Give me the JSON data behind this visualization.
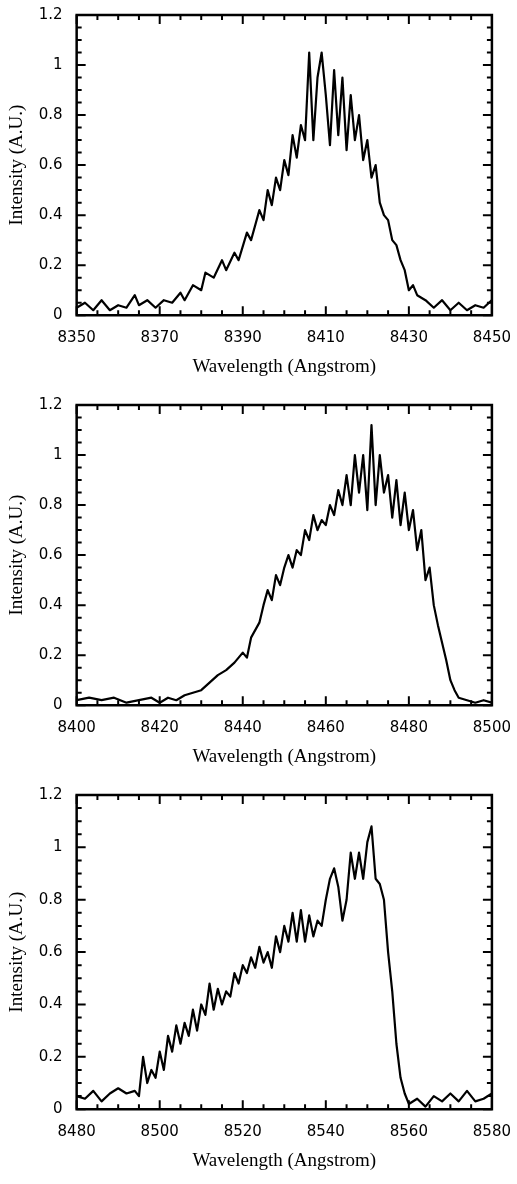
{
  "chart_data": [
    {
      "type": "line",
      "xlabel": "Wavelength (Angstrom)",
      "ylabel": "Intensity (A.U.)",
      "color": "#000000",
      "x": [
        8350,
        8352,
        8354,
        8356,
        8358,
        8360,
        8362,
        8364,
        8365,
        8367,
        8369,
        8371,
        8373,
        8375,
        8376,
        8378,
        8380,
        8381,
        8383,
        8385,
        8386,
        8388,
        8389,
        8391,
        8392,
        8394,
        8395,
        8396,
        8397,
        8398,
        8399,
        8400,
        8401,
        8402,
        8403,
        8404,
        8405,
        8406,
        8407,
        8408,
        8409,
        8410,
        8411,
        8412,
        8413,
        8414,
        8415,
        8416,
        8417,
        8418,
        8419,
        8420,
        8421,
        8422,
        8423,
        8424,
        8425,
        8426,
        8427,
        8428,
        8429,
        8430,
        8431,
        8432,
        8434,
        8436,
        8438,
        8440,
        8442,
        8444,
        8446,
        8448,
        8450
      ],
      "values": [
        0.03,
        0.05,
        0.02,
        0.06,
        0.02,
        0.04,
        0.03,
        0.08,
        0.04,
        0.06,
        0.03,
        0.06,
        0.05,
        0.09,
        0.06,
        0.12,
        0.1,
        0.17,
        0.15,
        0.22,
        0.18,
        0.25,
        0.22,
        0.33,
        0.3,
        0.42,
        0.38,
        0.5,
        0.44,
        0.55,
        0.5,
        0.62,
        0.56,
        0.72,
        0.63,
        0.76,
        0.7,
        1.05,
        0.7,
        0.95,
        1.05,
        0.88,
        0.68,
        0.98,
        0.72,
        0.95,
        0.66,
        0.88,
        0.7,
        0.8,
        0.62,
        0.7,
        0.55,
        0.6,
        0.45,
        0.4,
        0.38,
        0.3,
        0.28,
        0.22,
        0.18,
        0.1,
        0.12,
        0.08,
        0.06,
        0.03,
        0.06,
        0.02,
        0.05,
        0.02,
        0.04,
        0.03,
        0.06
      ],
      "xlim": [
        8350,
        8450
      ],
      "xticks": [
        8350,
        {
          "value": 8355,
          "label": null
        },
        {
          "value": 8360,
          "label": null
        },
        {
          "value": 8365,
          "label": null
        },
        8370,
        {
          "value": 8375,
          "label": null
        },
        {
          "value": 8380,
          "label": null
        },
        {
          "value": 8385,
          "label": null
        },
        8390,
        {
          "value": 8395,
          "label": null
        },
        {
          "value": 8400,
          "label": null
        },
        {
          "value": 8405,
          "label": null
        },
        8410,
        {
          "value": 8415,
          "label": null
        },
        {
          "value": 8420,
          "label": null
        },
        {
          "value": 8425,
          "label": null
        },
        8430,
        {
          "value": 8435,
          "label": null
        },
        {
          "value": 8440,
          "label": null
        },
        {
          "value": 8445,
          "label": null
        },
        8450
      ],
      "ylim": [
        0,
        1.2
      ],
      "yticks": [
        0,
        {
          "value": 0.05,
          "label": null
        },
        {
          "value": 0.1,
          "label": null
        },
        {
          "value": 0.15,
          "label": null
        },
        0.2,
        {
          "value": 0.25,
          "label": null
        },
        {
          "value": 0.3,
          "label": null
        },
        {
          "value": 0.35,
          "label": null
        },
        0.4,
        {
          "value": 0.45,
          "label": null
        },
        {
          "value": 0.5,
          "label": null
        },
        {
          "value": 0.55,
          "label": null
        },
        0.6,
        {
          "value": 0.65,
          "label": null
        },
        {
          "value": 0.7,
          "label": null
        },
        {
          "value": 0.75,
          "label": null
        },
        0.8,
        {
          "value": 0.85,
          "label": null
        },
        {
          "value": 0.9,
          "label": null
        },
        {
          "value": 0.95,
          "label": null
        },
        1,
        {
          "value": 1.05,
          "label": null
        },
        {
          "value": 1.1,
          "label": null
        },
        {
          "value": 1.15,
          "label": null
        },
        1.2
      ]
    },
    {
      "type": "line",
      "xlabel": "Wavelength (Angstrom)",
      "ylabel": "Intensity (A.U.)",
      "color": "#000000",
      "x": [
        8400,
        8403,
        8406,
        8409,
        8412,
        8415,
        8418,
        8420,
        8422,
        8424,
        8426,
        8428,
        8430,
        8432,
        8434,
        8436,
        8438,
        8440,
        8441,
        8442,
        8443,
        8444,
        8445,
        8446,
        8447,
        8448,
        8449,
        8450,
        8451,
        8452,
        8453,
        8454,
        8455,
        8456,
        8457,
        8458,
        8459,
        8460,
        8461,
        8462,
        8463,
        8464,
        8465,
        8466,
        8467,
        8468,
        8469,
        8470,
        8471,
        8472,
        8473,
        8474,
        8475,
        8476,
        8477,
        8478,
        8479,
        8480,
        8481,
        8482,
        8483,
        8484,
        8485,
        8486,
        8487,
        8488,
        8489,
        8490,
        8491,
        8492,
        8494,
        8496,
        8498,
        8500
      ],
      "values": [
        0.02,
        0.03,
        0.02,
        0.03,
        0.01,
        0.02,
        0.03,
        0.01,
        0.03,
        0.02,
        0.04,
        0.05,
        0.06,
        0.09,
        0.12,
        0.14,
        0.17,
        0.21,
        0.19,
        0.27,
        0.3,
        0.33,
        0.4,
        0.46,
        0.42,
        0.52,
        0.48,
        0.55,
        0.6,
        0.55,
        0.62,
        0.6,
        0.7,
        0.66,
        0.76,
        0.7,
        0.74,
        0.72,
        0.8,
        0.76,
        0.86,
        0.8,
        0.92,
        0.8,
        1,
        0.85,
        1,
        0.78,
        1.12,
        0.8,
        1,
        0.85,
        0.92,
        0.75,
        0.9,
        0.72,
        0.85,
        0.7,
        0.78,
        0.62,
        0.7,
        0.5,
        0.55,
        0.4,
        0.32,
        0.25,
        0.18,
        0.1,
        0.06,
        0.03,
        0.02,
        0.01,
        0.02,
        0.01
      ],
      "xlim": [
        8400,
        8500
      ],
      "xticks": [
        8400,
        {
          "value": 8405,
          "label": null
        },
        {
          "value": 8410,
          "label": null
        },
        {
          "value": 8415,
          "label": null
        },
        8420,
        {
          "value": 8425,
          "label": null
        },
        {
          "value": 8430,
          "label": null
        },
        {
          "value": 8435,
          "label": null
        },
        8440,
        {
          "value": 8445,
          "label": null
        },
        {
          "value": 8450,
          "label": null
        },
        {
          "value": 8455,
          "label": null
        },
        8460,
        {
          "value": 8465,
          "label": null
        },
        {
          "value": 8470,
          "label": null
        },
        {
          "value": 8475,
          "label": null
        },
        8480,
        {
          "value": 8485,
          "label": null
        },
        {
          "value": 8490,
          "label": null
        },
        {
          "value": 8495,
          "label": null
        },
        8500
      ],
      "ylim": [
        0,
        1.2
      ],
      "yticks": [
        0,
        {
          "value": 0.05,
          "label": null
        },
        {
          "value": 0.1,
          "label": null
        },
        {
          "value": 0.15,
          "label": null
        },
        0.2,
        {
          "value": 0.25,
          "label": null
        },
        {
          "value": 0.3,
          "label": null
        },
        {
          "value": 0.35,
          "label": null
        },
        0.4,
        {
          "value": 0.45,
          "label": null
        },
        {
          "value": 0.5,
          "label": null
        },
        {
          "value": 0.55,
          "label": null
        },
        0.6,
        {
          "value": 0.65,
          "label": null
        },
        {
          "value": 0.7,
          "label": null
        },
        {
          "value": 0.75,
          "label": null
        },
        0.8,
        {
          "value": 0.85,
          "label": null
        },
        {
          "value": 0.9,
          "label": null
        },
        {
          "value": 0.95,
          "label": null
        },
        1,
        {
          "value": 1.05,
          "label": null
        },
        {
          "value": 1.1,
          "label": null
        },
        {
          "value": 1.15,
          "label": null
        },
        1.2
      ]
    },
    {
      "type": "line",
      "xlabel": "Wavelength (Angstrom)",
      "ylabel": "Intensity (A.U.)",
      "color": "#000000",
      "x": [
        8480,
        8482,
        8484,
        8486,
        8488,
        8490,
        8492,
        8494,
        8495,
        8496,
        8497,
        8498,
        8499,
        8500,
        8501,
        8502,
        8503,
        8504,
        8505,
        8506,
        8507,
        8508,
        8509,
        8510,
        8511,
        8512,
        8513,
        8514,
        8515,
        8516,
        8517,
        8518,
        8519,
        8520,
        8521,
        8522,
        8523,
        8524,
        8525,
        8526,
        8527,
        8528,
        8529,
        8530,
        8531,
        8532,
        8533,
        8534,
        8535,
        8536,
        8537,
        8538,
        8539,
        8540,
        8541,
        8542,
        8543,
        8544,
        8545,
        8546,
        8547,
        8548,
        8549,
        8550,
        8551,
        8552,
        8553,
        8554,
        8555,
        8556,
        8557,
        8558,
        8559,
        8560,
        8562,
        8564,
        8566,
        8568,
        8570,
        8572,
        8574,
        8576,
        8578,
        8580
      ],
      "values": [
        0.05,
        0.04,
        0.07,
        0.03,
        0.06,
        0.08,
        0.06,
        0.07,
        0.05,
        0.2,
        0.1,
        0.15,
        0.12,
        0.22,
        0.15,
        0.28,
        0.22,
        0.32,
        0.25,
        0.33,
        0.28,
        0.38,
        0.3,
        0.4,
        0.36,
        0.48,
        0.38,
        0.46,
        0.4,
        0.45,
        0.43,
        0.52,
        0.48,
        0.55,
        0.52,
        0.58,
        0.54,
        0.62,
        0.56,
        0.6,
        0.54,
        0.66,
        0.6,
        0.7,
        0.64,
        0.75,
        0.64,
        0.76,
        0.64,
        0.74,
        0.66,
        0.72,
        0.7,
        0.8,
        0.88,
        0.92,
        0.85,
        0.72,
        0.8,
        0.98,
        0.88,
        0.98,
        0.88,
        1.02,
        1.08,
        0.88,
        0.86,
        0.8,
        0.6,
        0.45,
        0.25,
        0.12,
        0.06,
        0.02,
        0.04,
        0.01,
        0.05,
        0.03,
        0.06,
        0.03,
        0.07,
        0.03,
        0.04,
        0.06
      ],
      "xlim": [
        8480,
        8580
      ],
      "xticks": [
        8480,
        {
          "value": 8485,
          "label": null
        },
        {
          "value": 8490,
          "label": null
        },
        {
          "value": 8495,
          "label": null
        },
        8500,
        {
          "value": 8505,
          "label": null
        },
        {
          "value": 8510,
          "label": null
        },
        {
          "value": 8515,
          "label": null
        },
        8520,
        {
          "value": 8525,
          "label": null
        },
        {
          "value": 8530,
          "label": null
        },
        {
          "value": 8535,
          "label": null
        },
        8540,
        {
          "value": 8545,
          "label": null
        },
        {
          "value": 8550,
          "label": null
        },
        {
          "value": 8555,
          "label": null
        },
        8560,
        {
          "value": 8565,
          "label": null
        },
        {
          "value": 8570,
          "label": null
        },
        {
          "value": 8575,
          "label": null
        },
        8580
      ],
      "ylim": [
        0,
        1.2
      ],
      "yticks": [
        0,
        {
          "value": 0.05,
          "label": null
        },
        {
          "value": 0.1,
          "label": null
        },
        {
          "value": 0.15,
          "label": null
        },
        0.2,
        {
          "value": 0.25,
          "label": null
        },
        {
          "value": 0.3,
          "label": null
        },
        {
          "value": 0.35,
          "label": null
        },
        0.4,
        {
          "value": 0.45,
          "label": null
        },
        {
          "value": 0.5,
          "label": null
        },
        {
          "value": 0.55,
          "label": null
        },
        0.6,
        {
          "value": 0.65,
          "label": null
        },
        {
          "value": 0.7,
          "label": null
        },
        {
          "value": 0.75,
          "label": null
        },
        0.8,
        {
          "value": 0.85,
          "label": null
        },
        {
          "value": 0.9,
          "label": null
        },
        {
          "value": 0.95,
          "label": null
        },
        1,
        {
          "value": 1.05,
          "label": null
        },
        {
          "value": 1.1,
          "label": null
        },
        {
          "value": 1.15,
          "label": null
        },
        1.2
      ]
    }
  ]
}
